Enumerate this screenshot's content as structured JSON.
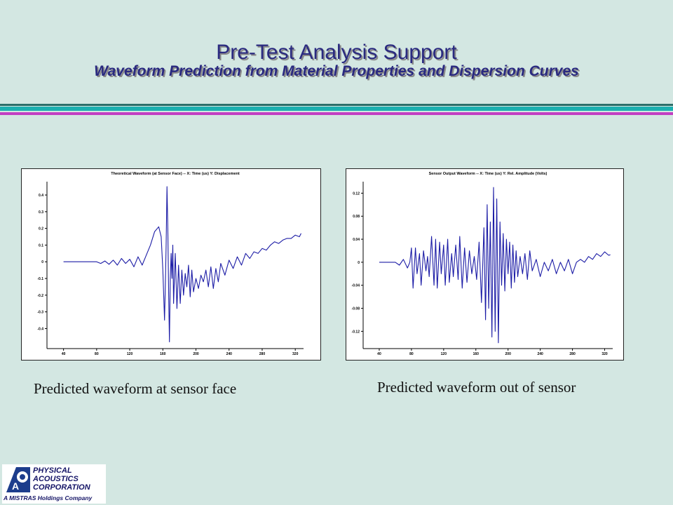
{
  "slide": {
    "title": "Pre-Test Analysis Support",
    "subtitle": "Waveform Prediction from Material Properties and Dispersion Curves",
    "caption_left": "Predicted waveform at sensor face",
    "caption_right": "Predicted waveform out of sensor"
  },
  "logo": {
    "line1": "PHYSICAL",
    "line2": "ACOUSTICS",
    "line3": "CORPORATION",
    "tagline": "A MISTRAS Holdings Company",
    "mark_letter": "A"
  },
  "colors": {
    "background": "#d3e7e2",
    "title": "#2a2a80",
    "trace": "#1c1ca6",
    "rule_teal": "#1bb0b0",
    "rule_magenta": "#c23fc2"
  },
  "chart_data": [
    {
      "type": "line",
      "title": "Theoretical Waveform (at Sensor Face) --  X: Time (us)   Y: Displacement",
      "xlim": [
        20,
        330
      ],
      "ylim": [
        -0.52,
        0.48
      ],
      "xticks": [
        40,
        80,
        120,
        160,
        200,
        240,
        280,
        320
      ],
      "yticks": [
        0.4,
        0.3,
        0.2,
        0.1,
        0,
        -0.1,
        -0.2,
        -0.3,
        -0.4
      ],
      "ytick_labels": [
        "0.4",
        "0.3",
        "0.2",
        "0.1",
        "0",
        "-0.1",
        "-0.2",
        "-0.3",
        "-0.4"
      ],
      "grid": false,
      "series": [
        {
          "x": [
            40,
            80,
            85,
            90,
            95,
            100,
            105,
            110,
            115,
            120,
            125,
            130,
            135,
            140,
            145,
            150,
            155,
            158,
            160,
            161,
            162,
            163,
            164,
            165,
            166,
            167,
            168,
            169,
            170,
            171,
            172,
            173,
            175,
            177,
            179,
            181,
            183,
            185,
            187,
            189,
            191,
            193,
            195,
            197,
            200,
            203,
            206,
            209,
            212,
            215,
            218,
            221,
            224,
            227,
            230,
            235,
            240,
            245,
            250,
            255,
            260,
            265,
            270,
            275,
            280,
            285,
            290,
            295,
            300,
            305,
            310,
            315,
            320,
            325,
            327
          ],
          "y": [
            0,
            0,
            -0.01,
            0.005,
            -0.015,
            0.01,
            -0.02,
            0.02,
            -0.01,
            0.015,
            -0.03,
            0.03,
            -0.02,
            0.04,
            0.1,
            0.18,
            0.21,
            0.15,
            -0.05,
            -0.2,
            -0.35,
            -0.15,
            0.1,
            0.45,
            0.2,
            -0.2,
            -0.48,
            -0.1,
            0.05,
            -0.1,
            0.1,
            -0.25,
            0.05,
            -0.28,
            -0.02,
            -0.25,
            -0.05,
            -0.2,
            -0.07,
            -0.15,
            -0.02,
            -0.21,
            -0.05,
            -0.18,
            -0.1,
            -0.16,
            -0.08,
            -0.12,
            -0.05,
            -0.15,
            -0.03,
            -0.16,
            -0.04,
            -0.12,
            -0.01,
            -0.08,
            0.01,
            -0.04,
            0.03,
            -0.02,
            0.05,
            0.02,
            0.06,
            0.05,
            0.08,
            0.07,
            0.1,
            0.12,
            0.11,
            0.13,
            0.14,
            0.14,
            0.16,
            0.15,
            0.17
          ]
        }
      ]
    },
    {
      "type": "line",
      "title": "Sensor Output Waveform  --  X: Time (us)   Y: Rel. Amplitude (Volts)",
      "xlim": [
        20,
        330
      ],
      "ylim": [
        -0.15,
        0.14
      ],
      "xticks": [
        40,
        80,
        120,
        160,
        200,
        240,
        280,
        320
      ],
      "yticks": [
        0.12,
        0.08,
        0.04,
        0,
        -0.04,
        -0.08,
        -0.12
      ],
      "ytick_labels": [
        "0.12",
        "0.08",
        "0.04",
        "0",
        "-0.04",
        "-0.08",
        "-0.12"
      ],
      "grid": false,
      "series": [
        {
          "x": [
            40,
            60,
            65,
            70,
            75,
            78,
            80,
            82,
            85,
            87,
            90,
            92,
            95,
            98,
            100,
            102,
            105,
            108,
            110,
            112,
            115,
            117,
            120,
            122,
            125,
            127,
            130,
            132,
            135,
            138,
            140,
            143,
            146,
            149,
            152,
            155,
            158,
            161,
            164,
            167,
            170,
            172,
            174,
            176,
            178,
            180,
            182,
            184,
            186,
            188,
            190,
            192,
            194,
            196,
            198,
            200,
            202,
            204,
            206,
            208,
            210,
            212,
            215,
            218,
            221,
            224,
            227,
            230,
            235,
            240,
            245,
            250,
            255,
            260,
            265,
            270,
            275,
            280,
            285,
            290,
            295,
            300,
            305,
            310,
            315,
            320,
            325,
            327
          ],
          "y": [
            0,
            0,
            -0.005,
            0.005,
            -0.01,
            0,
            0.025,
            -0.045,
            0.025,
            -0.02,
            0.015,
            -0.04,
            0.02,
            -0.015,
            0.01,
            -0.025,
            0.045,
            -0.04,
            0.04,
            -0.045,
            0.035,
            -0.02,
            0.03,
            -0.04,
            0.04,
            -0.035,
            0.015,
            -0.025,
            0.03,
            -0.03,
            0.045,
            -0.045,
            0.025,
            -0.035,
            0.02,
            -0.02,
            0.01,
            -0.03,
            0.035,
            -0.07,
            0.06,
            -0.1,
            0.1,
            -0.08,
            0.07,
            -0.13,
            0.13,
            -0.12,
            0.11,
            -0.14,
            0.07,
            -0.04,
            0.05,
            -0.05,
            0.04,
            -0.02,
            0.035,
            -0.045,
            0.03,
            -0.035,
            0.02,
            -0.025,
            0.01,
            -0.02,
            0.015,
            -0.03,
            0.02,
            -0.015,
            0.005,
            -0.025,
            0.0,
            -0.015,
            0.005,
            -0.02,
            0.0,
            -0.015,
            0.005,
            -0.02,
            0.0,
            0.005,
            0.0,
            0.01,
            0.005,
            0.015,
            0.01,
            0.018,
            0.012,
            0.013
          ]
        }
      ]
    }
  ]
}
